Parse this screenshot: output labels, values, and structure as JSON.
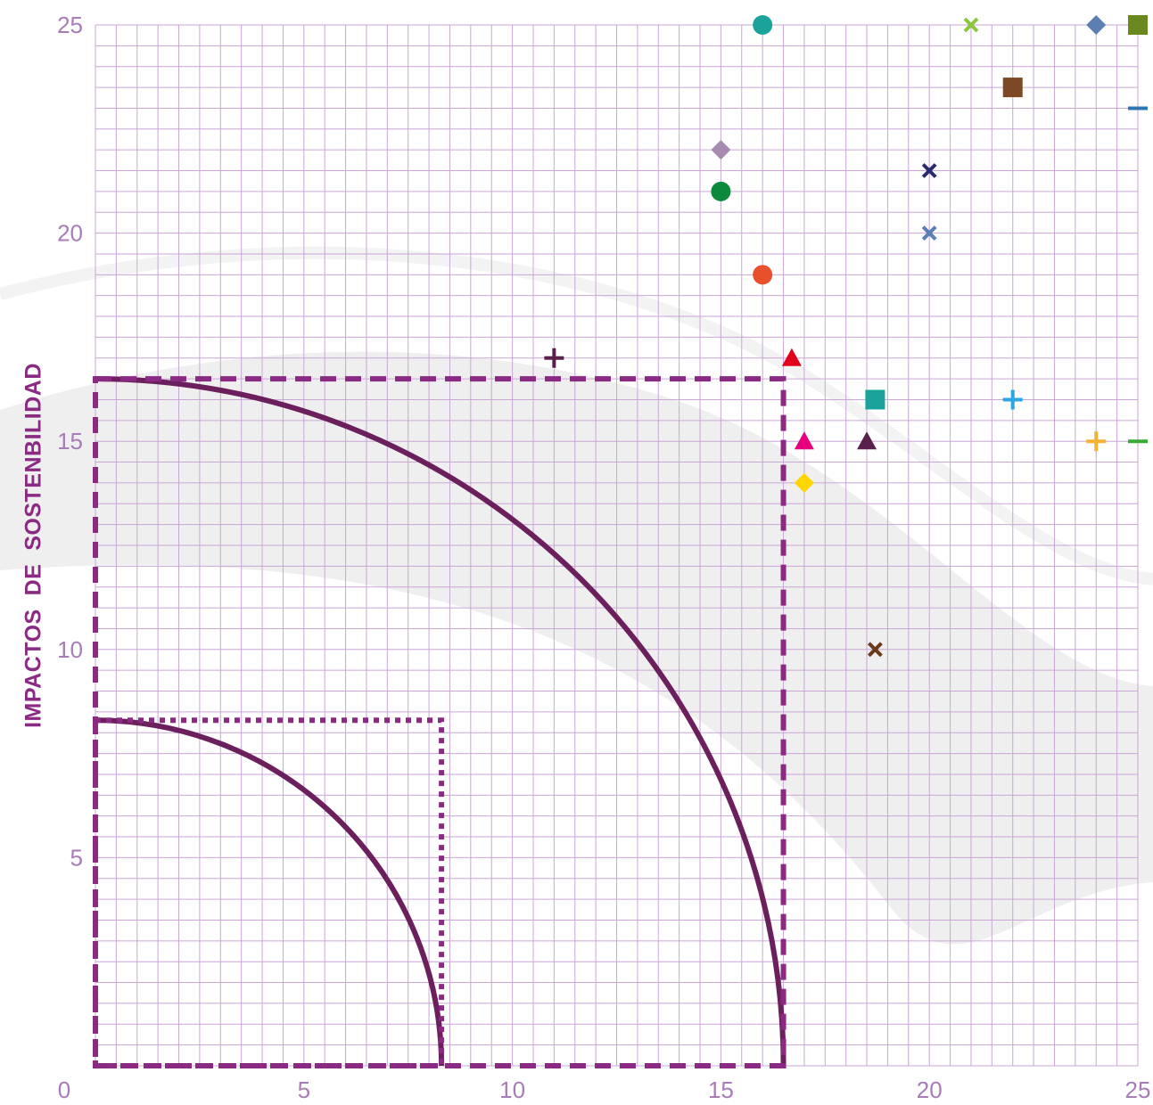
{
  "chart_data": {
    "type": "scatter",
    "ylabel": "IMPACTOS  DE  SOSTENBILIDAD",
    "xlabel": "",
    "xlim": [
      0,
      25
    ],
    "ylim": [
      0,
      25
    ],
    "x_ticks": [
      "0",
      "5",
      "10",
      "15",
      "20",
      "25"
    ],
    "y_ticks": [
      "5",
      "10",
      "15",
      "20",
      "25"
    ],
    "grid": true,
    "reference_regions": [
      {
        "shape": "quarter-circle",
        "radius": 16.5,
        "color": "#6b1f5c"
      },
      {
        "shape": "quarter-circle",
        "radius": 8.3,
        "color": "#6b1f5c"
      },
      {
        "shape": "dashed-square",
        "size": 16.5,
        "color": "#8b2a83"
      },
      {
        "shape": "dotted-square",
        "size": 8.3,
        "color": "#8b2a83"
      }
    ],
    "points": [
      {
        "x": 16,
        "y": 25,
        "marker": "circle",
        "color": "#1aa39a"
      },
      {
        "x": 21,
        "y": 25,
        "marker": "x",
        "color": "#8cc63f"
      },
      {
        "x": 24,
        "y": 25,
        "marker": "diamond",
        "color": "#5b7fb0"
      },
      {
        "x": 25,
        "y": 25,
        "marker": "square",
        "color": "#6a8a1f"
      },
      {
        "x": 22,
        "y": 23.5,
        "marker": "square",
        "color": "#7b4a24"
      },
      {
        "x": 25,
        "y": 23,
        "marker": "dash",
        "color": "#2e75b6"
      },
      {
        "x": 15,
        "y": 22,
        "marker": "diamond",
        "color": "#a78ab0"
      },
      {
        "x": 20,
        "y": 21.5,
        "marker": "x",
        "color": "#2b2a6e"
      },
      {
        "x": 15,
        "y": 21,
        "marker": "circle",
        "color": "#0a8a3a"
      },
      {
        "x": 20,
        "y": 20,
        "marker": "x",
        "color": "#5a7fb5"
      },
      {
        "x": 16,
        "y": 19,
        "marker": "diamond",
        "color": "#f7a21b"
      },
      {
        "x": 16,
        "y": 19,
        "marker": "circle",
        "color": "#e8502c"
      },
      {
        "x": 11,
        "y": 17,
        "marker": "plus",
        "color": "#5a1f4d"
      },
      {
        "x": 16.7,
        "y": 17,
        "marker": "triangle",
        "color": "#e3001b"
      },
      {
        "x": 18.7,
        "y": 16,
        "marker": "square",
        "color": "#1aa39a"
      },
      {
        "x": 22,
        "y": 16,
        "marker": "plus",
        "color": "#2aa6e0"
      },
      {
        "x": 17,
        "y": 15,
        "marker": "triangle",
        "color": "#e6007e"
      },
      {
        "x": 18.5,
        "y": 15,
        "marker": "triangle",
        "color": "#5a1f4d"
      },
      {
        "x": 24,
        "y": 15,
        "marker": "plus",
        "color": "#f7b233"
      },
      {
        "x": 25,
        "y": 15,
        "marker": "dash",
        "color": "#3aaa35"
      },
      {
        "x": 17,
        "y": 14,
        "marker": "diamond",
        "color": "#ffd500"
      },
      {
        "x": 18.7,
        "y": 10,
        "marker": "x",
        "color": "#6b3a1a"
      }
    ]
  }
}
